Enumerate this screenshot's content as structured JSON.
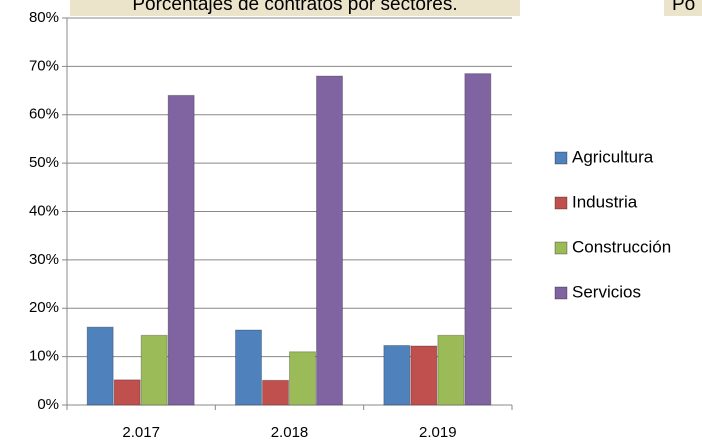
{
  "chart_data": {
    "type": "bar",
    "title": "Porcentajes de contratos por sectores.",
    "annotation": "Po",
    "categories": [
      "2.017",
      "2.018",
      "2.019"
    ],
    "series": [
      {
        "name": "Agricultura",
        "color": "#4f81bd",
        "values": [
          16.1,
          15.5,
          12.3
        ]
      },
      {
        "name": "Industria",
        "color": "#c0504d",
        "values": [
          5.2,
          5.1,
          12.2
        ]
      },
      {
        "name": "Construcción",
        "color": "#9bbb59",
        "values": [
          14.4,
          11.0,
          14.4
        ]
      },
      {
        "name": "Servicios",
        "color": "#8064a2",
        "values": [
          64.0,
          68.0,
          68.5
        ]
      }
    ],
    "ylim": [
      0,
      80
    ],
    "yticks": [
      {
        "value": 0,
        "label": "0%"
      },
      {
        "value": 10,
        "label": "10%"
      },
      {
        "value": 20,
        "label": "20%"
      },
      {
        "value": 30,
        "label": "30%"
      },
      {
        "value": 40,
        "label": "40%"
      },
      {
        "value": 50,
        "label": "50%"
      },
      {
        "value": 60,
        "label": "60%"
      },
      {
        "value": 70,
        "label": "70%"
      },
      {
        "value": 80,
        "label": "80%"
      }
    ],
    "grid": true,
    "legend": "right"
  }
}
